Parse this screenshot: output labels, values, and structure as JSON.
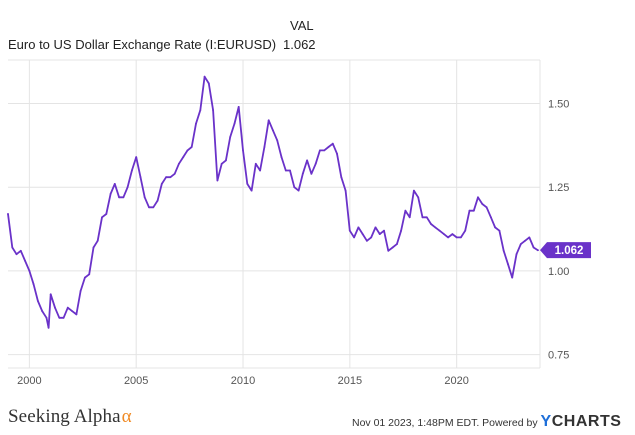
{
  "legend": {
    "header": "VAL",
    "series_name": "Euro to US Dollar Exchange Rate (I:EURUSD)",
    "series_value": "1.062"
  },
  "colors": {
    "line": "#6a32c9",
    "grid": "#e4e4e4",
    "axis_text": "#555555",
    "brand_alpha": "#f08a24",
    "ycharts_y": "#1e6fd9"
  },
  "footer": {
    "brand": "Seeking Alpha",
    "brand_mark": "α",
    "timestamp": "Nov 01 2023, 1:48PM EDT.",
    "powered_by": "Powered by",
    "ycharts_y": "Y",
    "ycharts_rest": "CHARTS"
  },
  "chart_data": {
    "type": "line",
    "title": "",
    "xlabel": "",
    "ylabel": "",
    "xlim": [
      1999.0,
      2023.9
    ],
    "ylim": [
      0.71,
      1.63
    ],
    "y_ticks": [
      "0.75",
      "1.00",
      "1.25",
      "1.50"
    ],
    "x_ticks": [
      "2000",
      "2005",
      "2010",
      "2015",
      "2020"
    ],
    "grid": true,
    "last_value_label": "1.062",
    "series": [
      {
        "name": "Euro to US Dollar Exchange Rate (I:EURUSD)",
        "x": [
          1999.0,
          1999.2,
          1999.4,
          1999.6,
          1999.8,
          2000.0,
          2000.2,
          2000.4,
          2000.6,
          2000.8,
          2000.9,
          2001.0,
          2001.2,
          2001.4,
          2001.6,
          2001.8,
          2002.0,
          2002.2,
          2002.4,
          2002.6,
          2002.8,
          2003.0,
          2003.2,
          2003.4,
          2003.6,
          2003.8,
          2004.0,
          2004.2,
          2004.4,
          2004.6,
          2004.8,
          2005.0,
          2005.2,
          2005.4,
          2005.6,
          2005.8,
          2006.0,
          2006.2,
          2006.4,
          2006.6,
          2006.8,
          2007.0,
          2007.2,
          2007.4,
          2007.6,
          2007.8,
          2008.0,
          2008.2,
          2008.4,
          2008.6,
          2008.8,
          2009.0,
          2009.2,
          2009.4,
          2009.6,
          2009.8,
          2010.0,
          2010.2,
          2010.4,
          2010.6,
          2010.8,
          2011.0,
          2011.2,
          2011.4,
          2011.6,
          2011.8,
          2012.0,
          2012.2,
          2012.4,
          2012.6,
          2012.8,
          2013.0,
          2013.2,
          2013.4,
          2013.6,
          2013.8,
          2014.0,
          2014.2,
          2014.4,
          2014.6,
          2014.8,
          2015.0,
          2015.2,
          2015.4,
          2015.6,
          2015.8,
          2016.0,
          2016.2,
          2016.4,
          2016.6,
          2016.8,
          2017.0,
          2017.2,
          2017.4,
          2017.6,
          2017.8,
          2018.0,
          2018.2,
          2018.4,
          2018.6,
          2018.8,
          2019.0,
          2019.2,
          2019.4,
          2019.6,
          2019.8,
          2020.0,
          2020.2,
          2020.4,
          2020.6,
          2020.8,
          2021.0,
          2021.2,
          2021.4,
          2021.6,
          2021.8,
          2022.0,
          2022.2,
          2022.4,
          2022.6,
          2022.8,
          2023.0,
          2023.2,
          2023.4,
          2023.6,
          2023.8
        ],
        "values": [
          1.17,
          1.07,
          1.05,
          1.06,
          1.03,
          1.0,
          0.96,
          0.91,
          0.88,
          0.86,
          0.83,
          0.93,
          0.89,
          0.86,
          0.86,
          0.89,
          0.88,
          0.87,
          0.94,
          0.98,
          0.99,
          1.07,
          1.09,
          1.16,
          1.17,
          1.23,
          1.26,
          1.22,
          1.22,
          1.25,
          1.3,
          1.34,
          1.28,
          1.22,
          1.19,
          1.19,
          1.21,
          1.26,
          1.28,
          1.28,
          1.29,
          1.32,
          1.34,
          1.36,
          1.37,
          1.44,
          1.48,
          1.58,
          1.56,
          1.48,
          1.27,
          1.32,
          1.33,
          1.4,
          1.44,
          1.49,
          1.36,
          1.26,
          1.24,
          1.32,
          1.3,
          1.37,
          1.45,
          1.42,
          1.39,
          1.34,
          1.3,
          1.3,
          1.25,
          1.24,
          1.29,
          1.33,
          1.29,
          1.32,
          1.36,
          1.36,
          1.37,
          1.38,
          1.35,
          1.28,
          1.24,
          1.12,
          1.1,
          1.13,
          1.11,
          1.09,
          1.1,
          1.13,
          1.11,
          1.12,
          1.06,
          1.07,
          1.08,
          1.12,
          1.18,
          1.16,
          1.24,
          1.22,
          1.16,
          1.16,
          1.14,
          1.13,
          1.12,
          1.11,
          1.1,
          1.11,
          1.1,
          1.1,
          1.12,
          1.18,
          1.18,
          1.22,
          1.2,
          1.19,
          1.16,
          1.13,
          1.12,
          1.06,
          1.02,
          0.98,
          1.05,
          1.08,
          1.09,
          1.1,
          1.07,
          1.062
        ]
      }
    ]
  }
}
